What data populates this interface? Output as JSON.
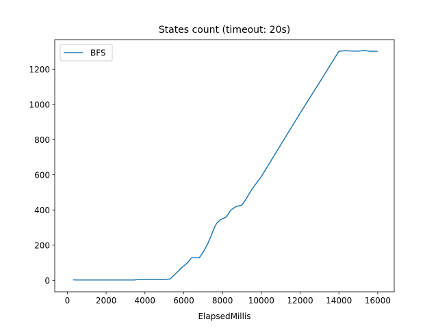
{
  "chart_data": {
    "type": "line",
    "title": "States count (timeout: 20s)",
    "xlabel": "ElapsedMillis",
    "ylabel": "",
    "xlim": [
      -650,
      16850
    ],
    "ylim": [
      -65,
      1368
    ],
    "xticks": [
      0,
      2000,
      4000,
      6000,
      8000,
      10000,
      12000,
      14000,
      16000
    ],
    "yticks": [
      0,
      200,
      400,
      600,
      800,
      1000,
      1200
    ],
    "grid": false,
    "legend_position": "top-left",
    "series": [
      {
        "name": "BFS",
        "color": "#1f77b4",
        "x": [
          300,
          500,
          1000,
          2000,
          3000,
          3500,
          3550,
          4000,
          4500,
          5000,
          5300,
          5600,
          5900,
          6200,
          6400,
          6500,
          6800,
          7000,
          7200,
          7400,
          7600,
          7700,
          7900,
          8000,
          8200,
          8400,
          8500,
          8700,
          9000,
          9200,
          9500,
          10000,
          11000,
          12000,
          13000,
          14000,
          14300,
          14700,
          15000,
          15300,
          15600,
          16000
        ],
        "y": [
          3,
          2,
          2,
          2,
          2,
          2,
          5,
          5,
          5,
          5,
          8,
          40,
          72,
          100,
          128,
          128,
          128,
          160,
          200,
          250,
          305,
          325,
          345,
          350,
          360,
          395,
          405,
          420,
          428,
          460,
          515,
          590,
          770,
          950,
          1125,
          1302,
          1305,
          1303,
          1303,
          1306,
          1302,
          1302
        ]
      }
    ]
  }
}
